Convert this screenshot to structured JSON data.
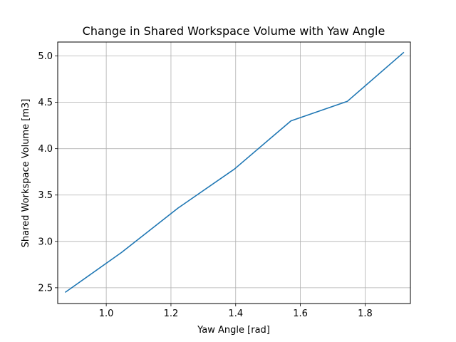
{
  "chart_data": {
    "type": "line",
    "title": "Change in Shared Workspace Volume with Yaw Angle",
    "xlabel": "Yaw Angle [rad]",
    "ylabel": "Shared Workspace Volume [m3]",
    "xlim": [
      0.85,
      1.94
    ],
    "ylim": [
      2.33,
      5.15
    ],
    "xticks": [
      1.0,
      1.2,
      1.4,
      1.6,
      1.8
    ],
    "xtick_labels": [
      "1.0",
      "1.2",
      "1.4",
      "1.6",
      "1.8"
    ],
    "yticks": [
      2.5,
      3.0,
      3.5,
      4.0,
      4.5,
      5.0
    ],
    "ytick_labels": [
      "2.5",
      "3.0",
      "3.5",
      "4.0",
      "4.5",
      "5.0"
    ],
    "grid": true,
    "series": [
      {
        "color": "#1f77b4",
        "x": [
          0.873,
          1.047,
          1.222,
          1.396,
          1.571,
          1.745,
          1.92
        ],
        "y": [
          2.45,
          2.88,
          3.36,
          3.78,
          4.3,
          4.51,
          5.04
        ]
      }
    ]
  }
}
